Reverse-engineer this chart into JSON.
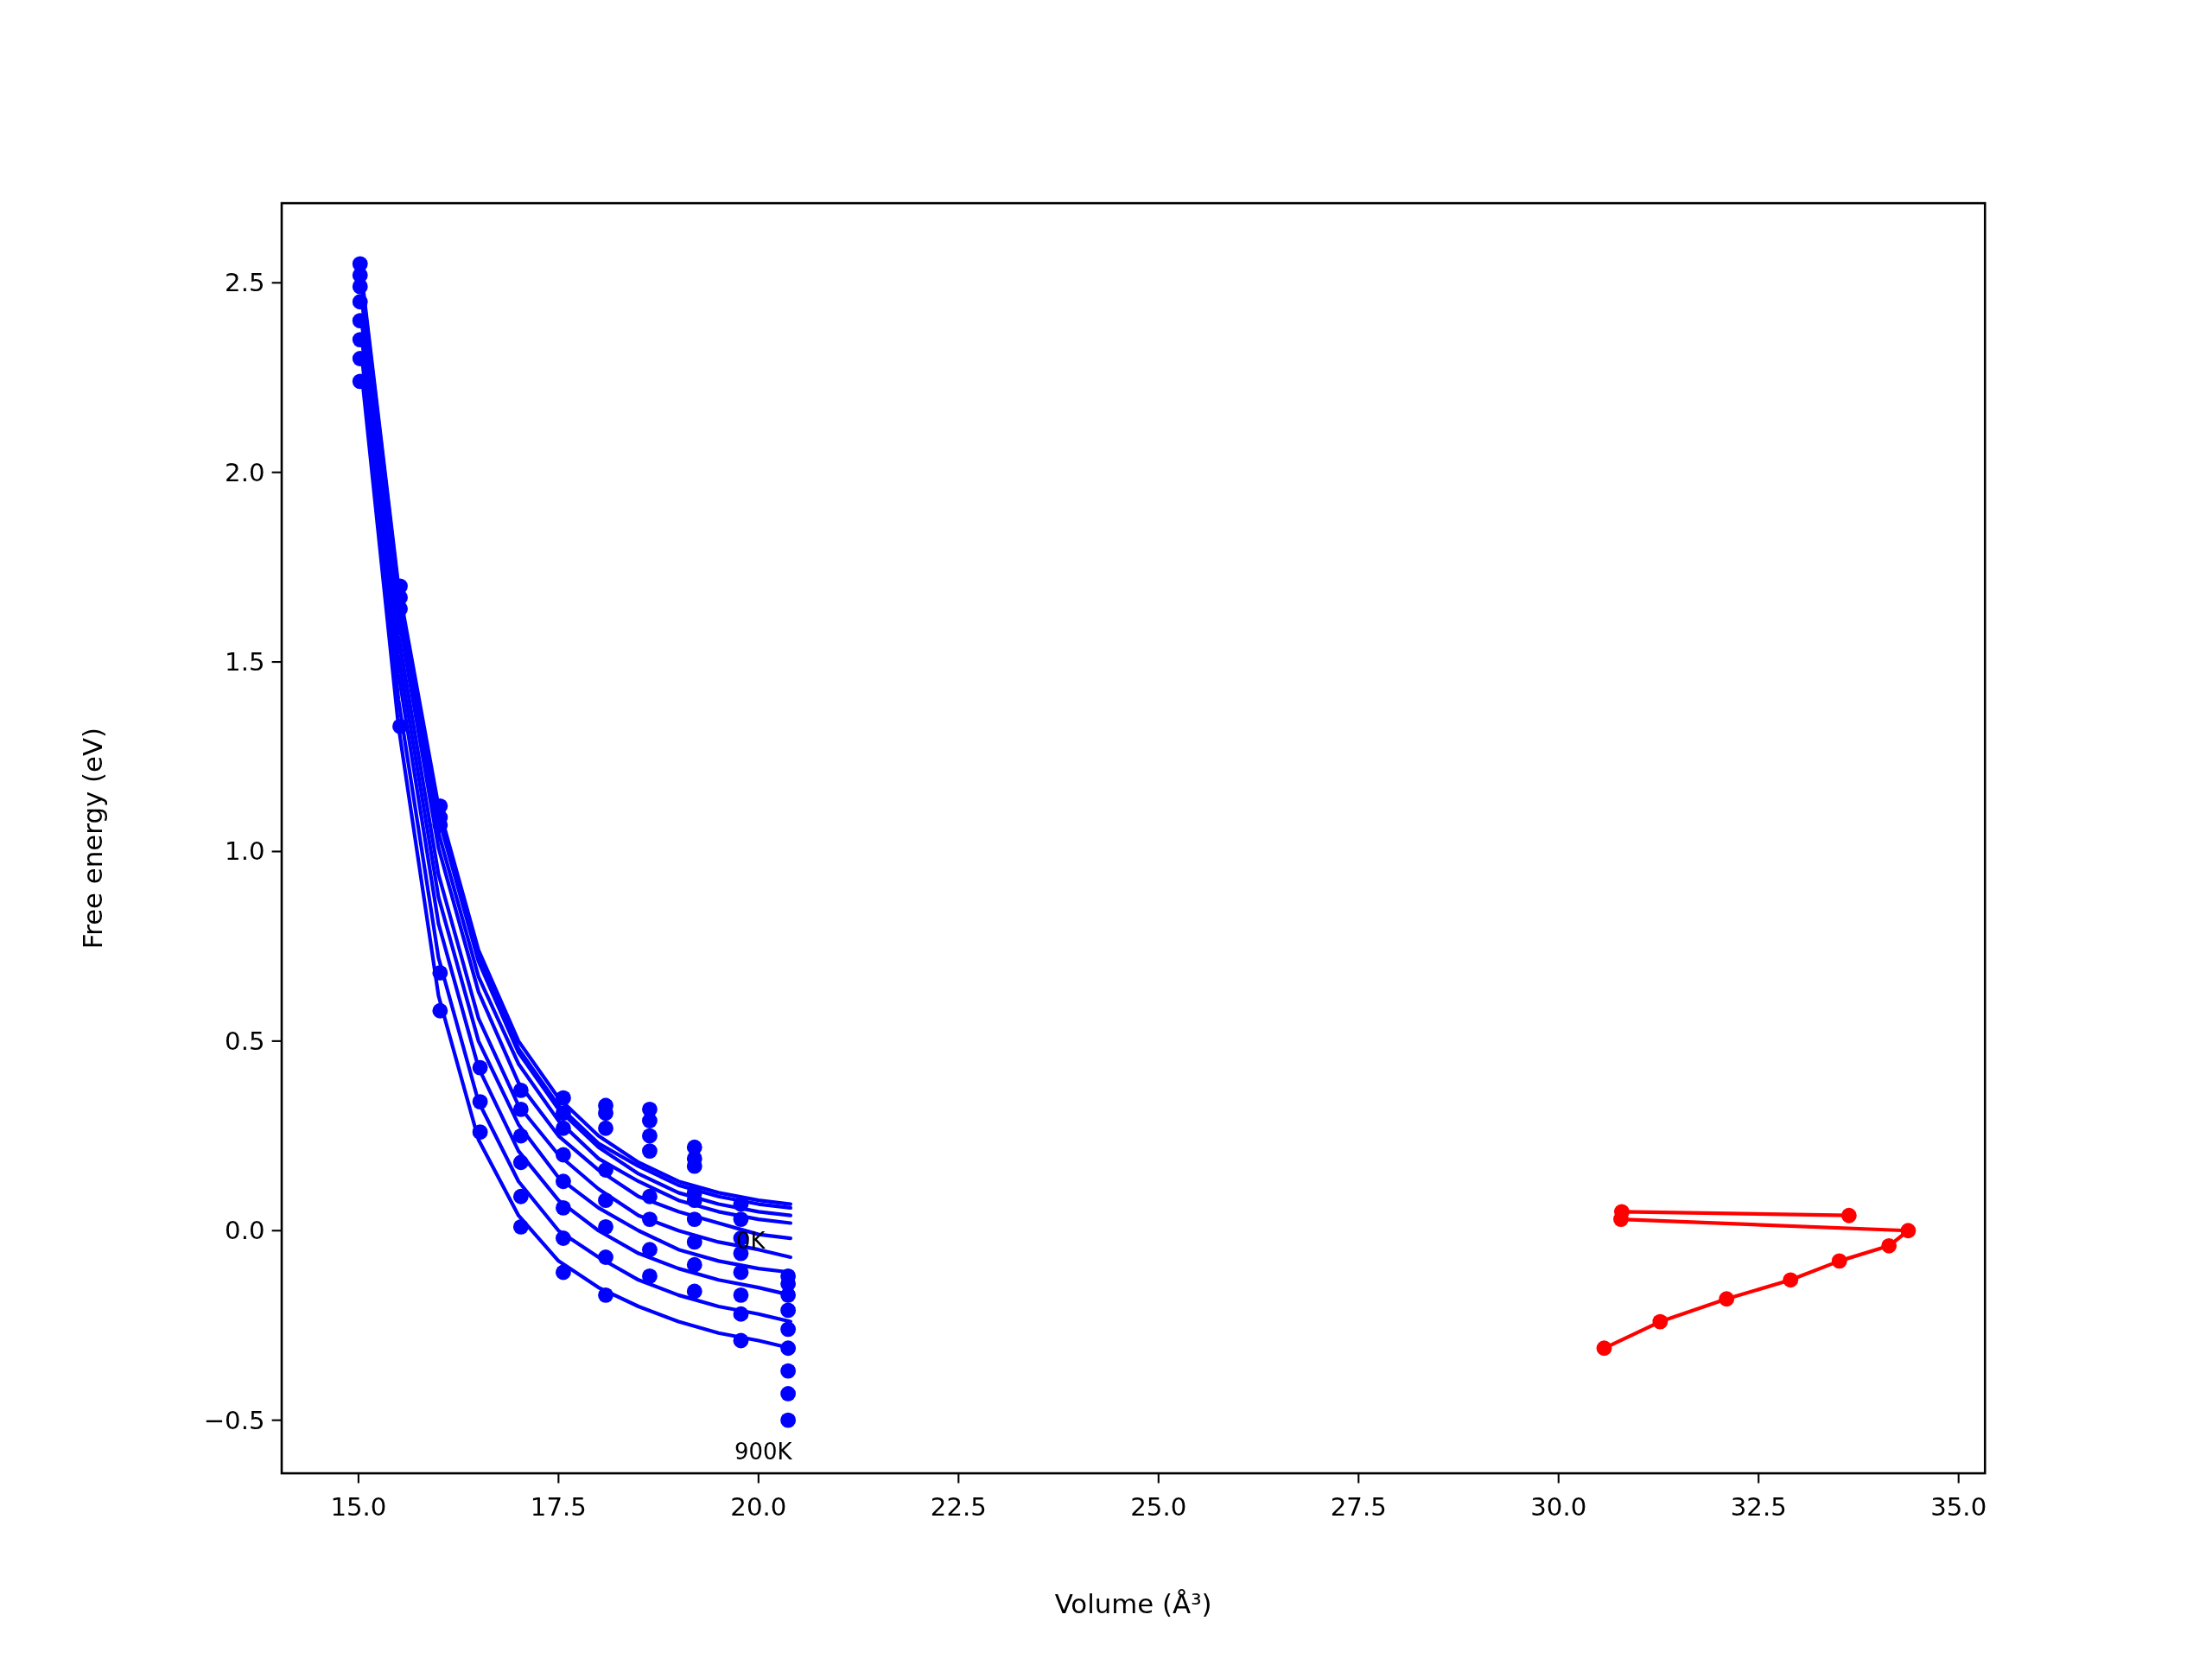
{
  "chart_data": {
    "type": "line",
    "xlabel": "Volume (Å³)",
    "ylabel": "Free energy (eV)",
    "xlim": [
      14.04,
      35.33
    ],
    "ylim": [
      -0.64,
      2.71
    ],
    "xticks": [
      {
        "value": 15,
        "label": "15.0"
      },
      {
        "value": 17.5,
        "label": "17.5"
      },
      {
        "value": 20,
        "label": "20.0"
      },
      {
        "value": 22.5,
        "label": "22.5"
      },
      {
        "value": 25,
        "label": "25.0"
      },
      {
        "value": 27.5,
        "label": "27.5"
      },
      {
        "value": 30,
        "label": "30.0"
      },
      {
        "value": 32.5,
        "label": "32.5"
      },
      {
        "value": 35,
        "label": "35.0"
      }
    ],
    "yticks": [
      {
        "value": -0.5,
        "label": "−0.5"
      },
      {
        "value": 0,
        "label": "0.0"
      },
      {
        "value": 0.5,
        "label": "0.5"
      },
      {
        "value": 1,
        "label": "1.0"
      },
      {
        "value": 1.5,
        "label": "1.5"
      },
      {
        "value": 2,
        "label": "2.0"
      },
      {
        "value": 2.5,
        "label": "2.5"
      }
    ],
    "annotations": [
      {
        "text": "0K",
        "x": 19.72,
        "y": -0.03
      },
      "900K"
    ],
    "series": [
      {
        "type": "scatter",
        "marker": "circle",
        "color": "#0000ff",
        "x": [
          15.02,
          15.02,
          15.02,
          15.02,
          15.02,
          15.02,
          15.02,
          15.02,
          15.52,
          15.52,
          15.52,
          15.52,
          16.02,
          16.02,
          16.02,
          16.02,
          16.02,
          16.52,
          16.52,
          16.52,
          17.03,
          17.03,
          17.03,
          17.03,
          17.03,
          17.03,
          17.56,
          17.56,
          17.56,
          17.56,
          17.56,
          17.56,
          17.56,
          17.56,
          18.09,
          18.09,
          18.09,
          18.09,
          18.09,
          18.09,
          18.09,
          18.09,
          18.64,
          18.64,
          18.64,
          18.64,
          18.64,
          18.64,
          18.64,
          18.64,
          19.2,
          19.2,
          19.2,
          19.2,
          19.2,
          19.2,
          19.2,
          19.2,
          19.2,
          19.78,
          19.78,
          19.78,
          19.78,
          19.78,
          19.78,
          19.78,
          19.78,
          20.37,
          20.37,
          20.37,
          20.37,
          20.37,
          20.37,
          20.37,
          20.37,
          20.37
        ],
        "values": [
          2.55,
          2.52,
          2.49,
          2.45,
          2.4,
          2.35,
          2.3,
          2.24,
          1.7,
          1.67,
          1.64,
          1.33,
          1.12,
          1.09,
          1.07,
          0.68,
          0.58,
          0.43,
          0.34,
          0.26,
          0.37,
          0.32,
          0.25,
          0.18,
          0.09,
          0.01,
          0.35,
          0.31,
          0.27,
          0.2,
          0.13,
          0.06,
          -0.02,
          -0.11,
          0.33,
          0.31,
          0.27,
          0.16,
          0.08,
          0.01,
          -0.07,
          -0.17,
          0.32,
          0.29,
          0.25,
          0.21,
          0.09,
          0.03,
          -0.05,
          -0.12,
          0.22,
          0.19,
          0.17,
          0.1,
          0.08,
          0.03,
          -0.03,
          -0.09,
          -0.16,
          0.07,
          0.03,
          -0.02,
          -0.06,
          -0.11,
          -0.17,
          -0.22,
          -0.29,
          -0.12,
          -0.14,
          -0.17,
          -0.21,
          -0.26,
          -0.31,
          -0.37,
          -0.43,
          -0.5
        ]
      },
      {
        "marker": "none",
        "color": "#0000ff",
        "x": [
          15.05,
          15.5,
          16,
          16.5,
          17,
          17.5,
          18,
          18.5,
          19,
          19.5,
          20,
          20.4
        ],
        "values": [
          2.5,
          1.7,
          1.12,
          0.74,
          0.5,
          0.35,
          0.25,
          0.18,
          0.13,
          0.1,
          0.08,
          0.07
        ]
      },
      {
        "marker": "none",
        "color": "#0000ff",
        "x": [
          15.05,
          15.5,
          16,
          16.5,
          17,
          17.5,
          18,
          18.5,
          19,
          19.5,
          20,
          20.4
        ],
        "values": [
          2.49,
          1.69,
          1.1,
          0.72,
          0.48,
          0.33,
          0.23,
          0.17,
          0.12,
          0.09,
          0.07,
          0.06
        ]
      },
      {
        "marker": "none",
        "color": "#0000ff",
        "x": [
          15.05,
          15.5,
          16,
          16.5,
          17,
          17.5,
          18,
          18.5,
          19,
          19.5,
          20,
          20.4
        ],
        "values": [
          2.48,
          1.67,
          1.09,
          0.71,
          0.47,
          0.32,
          0.22,
          0.15,
          0.1,
          0.07,
          0.05,
          0.04
        ]
      },
      {
        "marker": "none",
        "color": "#0000ff",
        "x": [
          15.05,
          15.5,
          16,
          16.5,
          17,
          17.5,
          18,
          18.5,
          19,
          19.5,
          20,
          20.4
        ],
        "values": [
          2.46,
          1.65,
          1.05,
          0.67,
          0.44,
          0.29,
          0.19,
          0.13,
          0.08,
          0.05,
          0.03,
          0.02
        ]
      },
      {
        "marker": "none",
        "color": "#0000ff",
        "x": [
          15.05,
          15.5,
          16,
          16.5,
          17,
          17.5,
          18,
          18.5,
          19,
          19.5,
          20,
          20.4
        ],
        "values": [
          2.44,
          1.62,
          1.01,
          0.63,
          0.39,
          0.25,
          0.16,
          0.09,
          0.05,
          0.02,
          -0.01,
          -0.02
        ]
      },
      {
        "marker": "none",
        "color": "#0000ff",
        "x": [
          15.05,
          15.5,
          16,
          16.5,
          17,
          17.5,
          18,
          18.5,
          19,
          19.5,
          20,
          20.4
        ],
        "values": [
          2.41,
          1.57,
          0.94,
          0.56,
          0.33,
          0.2,
          0.11,
          0.04,
          0.0,
          -0.03,
          -0.05,
          -0.07
        ]
      },
      {
        "marker": "none",
        "color": "#0000ff",
        "x": [
          15.05,
          15.5,
          16,
          16.5,
          17,
          17.5,
          18,
          18.5,
          19,
          19.5,
          20,
          20.4
        ],
        "values": [
          2.38,
          1.52,
          0.88,
          0.5,
          0.28,
          0.14,
          0.06,
          0.0,
          -0.05,
          -0.08,
          -0.1,
          -0.11
        ]
      },
      {
        "marker": "none",
        "color": "#0000ff",
        "x": [
          15.05,
          15.5,
          16,
          16.5,
          17,
          17.5,
          18,
          18.5,
          19,
          19.5,
          20,
          20.4
        ],
        "values": [
          2.34,
          1.47,
          0.81,
          0.43,
          0.21,
          0.08,
          0.0,
          -0.06,
          -0.1,
          -0.13,
          -0.15,
          -0.17
        ]
      },
      {
        "marker": "none",
        "color": "#0000ff",
        "x": [
          15.05,
          15.5,
          16,
          16.5,
          17,
          17.5,
          18,
          18.5,
          19,
          19.5,
          20,
          20.4
        ],
        "values": [
          2.29,
          1.4,
          0.72,
          0.34,
          0.13,
          0.0,
          -0.07,
          -0.13,
          -0.17,
          -0.2,
          -0.22,
          -0.24
        ]
      },
      {
        "marker": "none",
        "color": "#0000ff",
        "x": [
          15.05,
          15.5,
          16,
          16.5,
          17,
          17.5,
          18,
          18.5,
          19,
          19.5,
          20,
          20.4
        ],
        "values": [
          2.24,
          1.33,
          0.62,
          0.24,
          0.04,
          -0.08,
          -0.15,
          -0.2,
          -0.24,
          -0.27,
          -0.29,
          -0.31
        ]
      },
      {
        "marker": "circle",
        "color": "#ff0000",
        "x": [
          30.57,
          31.27,
          32.1,
          32.9,
          33.51,
          34.13,
          34.37,
          30.78,
          30.79,
          33.63
        ],
        "values": [
          -0.31,
          -0.24,
          -0.18,
          -0.13,
          -0.08,
          -0.04,
          0.0,
          0.03,
          0.05,
          0.04
        ]
      }
    ]
  }
}
